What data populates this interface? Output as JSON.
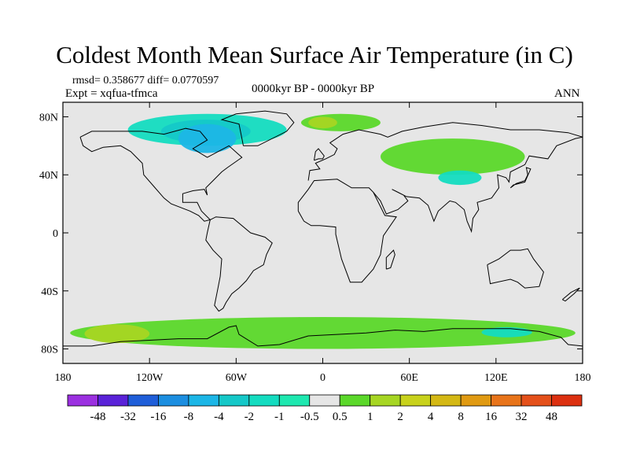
{
  "title": "Coldest Month Mean Surface Air Temperature (in C)",
  "stats": "rmsd= 0.358677  diff= 0.0770597",
  "experiment": "Expt = xqfua-tfmca",
  "period": "0000kyr BP - 0000kyr BP",
  "season": "ANN",
  "colors": {
    "background": "#e6e6e6",
    "coast": "#000000"
  },
  "chart_data": {
    "type": "heatmap",
    "variable": "Coldest Month Mean Surface Air Temperature difference",
    "units": "C",
    "projection": "cylindrical equidistant",
    "x_range": [
      -180,
      180
    ],
    "y_range": [
      -90,
      90
    ],
    "x_ticks": [
      {
        "value": -180,
        "label": "180"
      },
      {
        "value": -120,
        "label": "120W"
      },
      {
        "value": -60,
        "label": "60W"
      },
      {
        "value": 0,
        "label": "0"
      },
      {
        "value": 60,
        "label": "60E"
      },
      {
        "value": 120,
        "label": "120E"
      },
      {
        "value": 180,
        "label": "180"
      }
    ],
    "y_ticks": [
      {
        "value": 80,
        "label": "80N"
      },
      {
        "value": 40,
        "label": "40N"
      },
      {
        "value": 0,
        "label": "0"
      },
      {
        "value": -40,
        "label": "40S"
      },
      {
        "value": -80,
        "label": "80S"
      }
    ],
    "colorbar": {
      "labels": [
        "-48",
        "-32",
        "-16",
        "-8",
        "-4",
        "-2",
        "-1",
        "-0.5",
        "0.5",
        "1",
        "2",
        "4",
        "8",
        "16",
        "32",
        "48"
      ],
      "colors": [
        "#9b30e0",
        "#5a22d8",
        "#1f5ed9",
        "#1c8ee0",
        "#1cb6e6",
        "#15c8c8",
        "#14dcc0",
        "#1ee8b0",
        "#e6e6e6",
        "#5bd82a",
        "#a6d623",
        "#c8d21c",
        "#d4b814",
        "#e09a12",
        "#e8741a",
        "#e4501a",
        "#dc3010"
      ]
    },
    "anomaly_regions": [
      {
        "level": "-0.5 to -1",
        "color": "#14dcc0",
        "lon": [
          -135,
          -25
        ],
        "lat": [
          60,
          82
        ]
      },
      {
        "level": "-1 to -2",
        "color": "#15c8c8",
        "lon": [
          -112,
          -50
        ],
        "lat": [
          62,
          78
        ]
      },
      {
        "level": "-2 to -4",
        "color": "#1cb6e6",
        "lon": [
          -100,
          -60
        ],
        "lat": [
          55,
          75
        ]
      },
      {
        "level": "0.5 to 1",
        "color": "#5bd82a",
        "lon": [
          -15,
          40
        ],
        "lat": [
          70,
          82
        ]
      },
      {
        "level": "1 to 2",
        "color": "#a6d623",
        "lon": [
          -10,
          10
        ],
        "lat": [
          72,
          80
        ]
      },
      {
        "level": "0.5 to 1",
        "color": "#5bd82a",
        "lon": [
          40,
          140
        ],
        "lat": [
          40,
          65
        ]
      },
      {
        "level": "-0.5 to -1",
        "color": "#14dcc0",
        "lon": [
          80,
          110
        ],
        "lat": [
          33,
          43
        ]
      },
      {
        "level": "0.5 to 1",
        "color": "#5bd82a",
        "lon": [
          -175,
          175
        ],
        "lat": [
          -80,
          -58
        ]
      },
      {
        "level": "1 to 2",
        "color": "#a6d623",
        "lon": [
          -165,
          -120
        ],
        "lat": [
          -76,
          -63
        ]
      },
      {
        "level": "-0.5 to -1",
        "color": "#14dcc0",
        "lon": [
          110,
          145
        ],
        "lat": [
          -72,
          -65
        ]
      }
    ]
  }
}
